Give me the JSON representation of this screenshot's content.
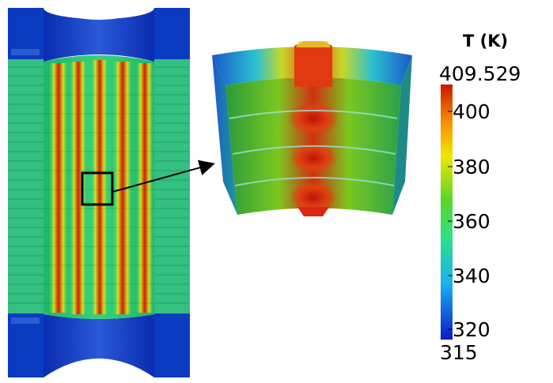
{
  "colorbar": {
    "title": "T (K)",
    "max_label": "409.529",
    "min_label": "315",
    "min_value": 315,
    "max_value": 409.529,
    "ticks": [
      "400",
      "380",
      "360",
      "340",
      "320"
    ],
    "tick_values": [
      400,
      380,
      360,
      340,
      320
    ],
    "colormap": [
      "#0a1ac8",
      "#19b2f0",
      "#2ee08a",
      "#5cd626",
      "#f2e600",
      "#f58a00",
      "#cc1400"
    ]
  },
  "colors": {
    "cold_blue": "#0a2ab8",
    "warm_green": "#2ecf6a",
    "hot_red": "#c81e0a"
  }
}
